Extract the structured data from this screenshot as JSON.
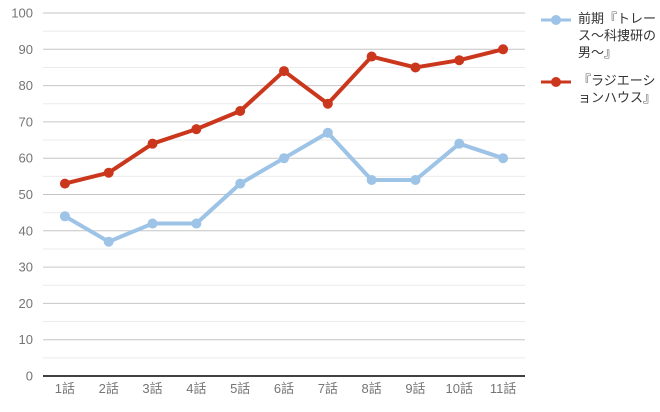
{
  "chart_data": {
    "type": "line",
    "title": "",
    "xlabel": "",
    "ylabel": "",
    "categories": [
      "1話",
      "2話",
      "3話",
      "4話",
      "5話",
      "6話",
      "7話",
      "8話",
      "9話",
      "10話",
      "11話"
    ],
    "series": [
      {
        "name": "前期『トレース〜科捜研の男〜』",
        "values": [
          44,
          37,
          42,
          42,
          53,
          60,
          67,
          54,
          54,
          64,
          60
        ],
        "color": "#9DC3E6"
      },
      {
        "name": "『ラジエーションハウス』",
        "values": [
          53,
          56,
          64,
          68,
          73,
          84,
          75,
          88,
          85,
          87,
          90
        ],
        "color": "#CB371D"
      }
    ],
    "ylim": [
      0,
      100
    ],
    "y_ticks": [
      0,
      10,
      20,
      30,
      40,
      50,
      60,
      70,
      80,
      90,
      100
    ],
    "minor_tick_step": 5,
    "grid": true,
    "legend_position": "right"
  },
  "styles": {
    "background": "#ffffff",
    "axis_line_color": "#424242",
    "major_grid_color": "#c6c6c6",
    "minor_grid_color": "#ebebeb",
    "tick_label_color": "#757575",
    "legend_text_color": "#333333"
  }
}
